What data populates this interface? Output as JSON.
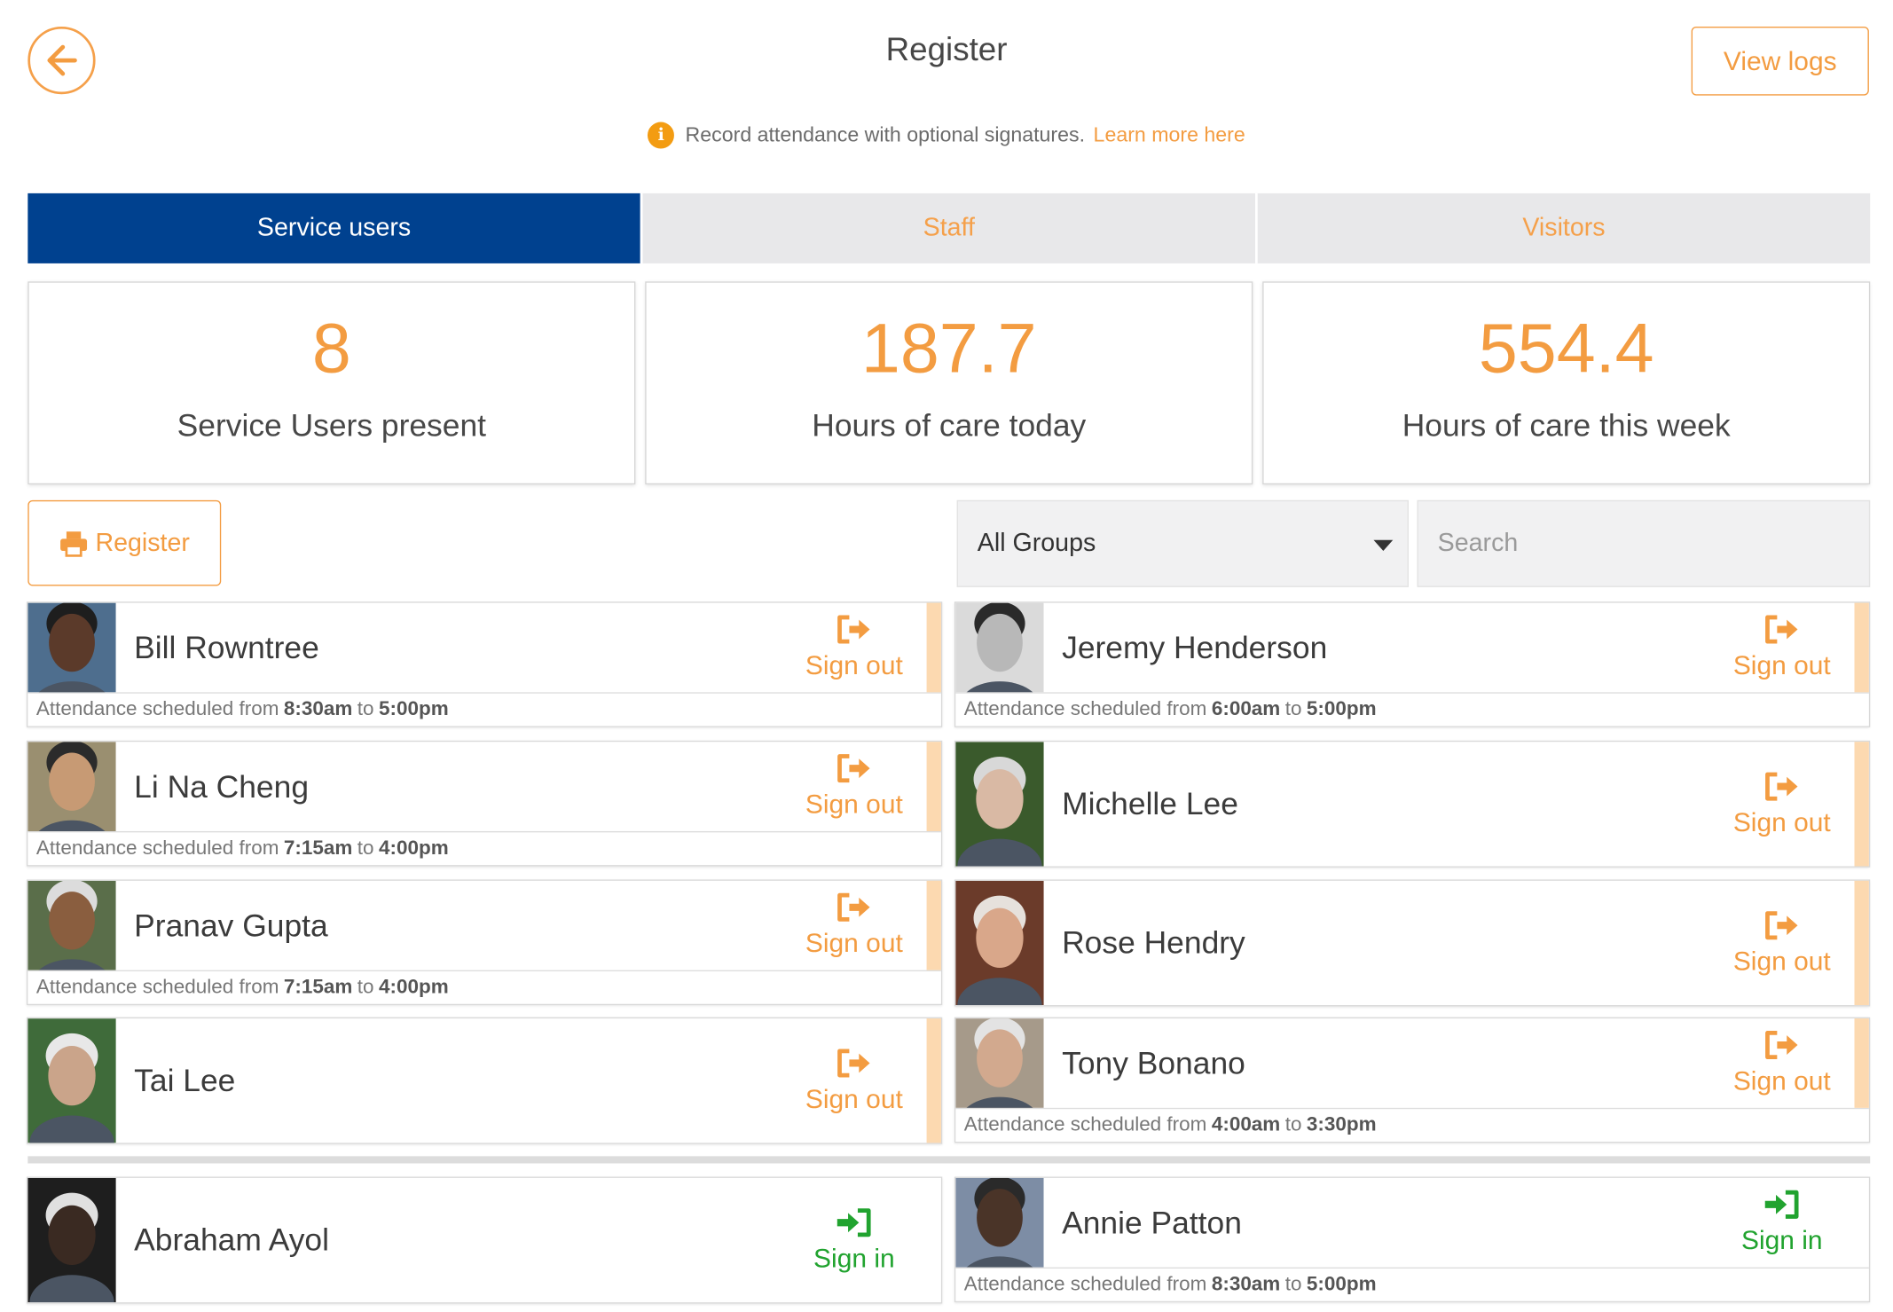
{
  "header": {
    "title": "Register",
    "view_logs_label": "View logs",
    "info_text": "Record attendance with optional signatures.",
    "learn_more": "Learn more here"
  },
  "tabs": [
    {
      "label": "Service users",
      "active": true
    },
    {
      "label": "Staff",
      "active": false
    },
    {
      "label": "Visitors",
      "active": false
    }
  ],
  "stats": [
    {
      "value": "8",
      "label": "Service Users present"
    },
    {
      "value": "187.7",
      "label": "Hours of care today"
    },
    {
      "value": "554.4",
      "label": "Hours of care this week"
    }
  ],
  "toolbar": {
    "print_label": "Register",
    "group_select": "All Groups",
    "search_placeholder": "Search"
  },
  "schedule_prefix": "Attendance scheduled from",
  "schedule_to": "to",
  "people": [
    {
      "name": "Bill Rowntree",
      "action": "Sign out",
      "from": "8:30am",
      "until": "5:00pm",
      "skin": "#5b3a2a",
      "hair": "#1e1e1e",
      "bg": "#4e6e8e"
    },
    {
      "name": "Jeremy Henderson",
      "action": "Sign out",
      "from": "6:00am",
      "until": "5:00pm",
      "skin": "#b8b8b8",
      "hair": "#2a2a2a",
      "bg": "#dadada"
    },
    {
      "name": "Li Na Cheng",
      "action": "Sign out",
      "from": "7:15am",
      "until": "4:00pm",
      "skin": "#c79a74",
      "hair": "#2b2b2b",
      "bg": "#9a8f70"
    },
    {
      "name": "Michelle Lee",
      "action": "Sign out",
      "from": "",
      "until": "",
      "skin": "#d9b9a4",
      "hair": "#d8d8d8",
      "bg": "#3a5a2c"
    },
    {
      "name": "Pranav Gupta",
      "action": "Sign out",
      "from": "7:15am",
      "until": "4:00pm",
      "skin": "#8a5e3f",
      "hair": "#dcdcdc",
      "bg": "#5a6e4a"
    },
    {
      "name": "Rose Hendry",
      "action": "Sign out",
      "from": "",
      "until": "",
      "skin": "#d9a78a",
      "hair": "#e6e1dc",
      "bg": "#6b3b2a"
    },
    {
      "name": "Tai Lee",
      "action": "Sign out",
      "from": "",
      "until": "",
      "skin": "#caa48a",
      "hair": "#e8e8e8",
      "bg": "#3f6b3a"
    },
    {
      "name": "Tony Bonano",
      "action": "Sign out",
      "from": "4:00am",
      "until": "3:30pm",
      "skin": "#d2a98e",
      "hair": "#e3e3e3",
      "bg": "#a69a8a"
    },
    {
      "name": "Abraham Ayol",
      "action": "Sign in",
      "from": "",
      "until": "",
      "skin": "#3a2a22",
      "hair": "#e0e0e0",
      "bg": "#1e1e1e"
    },
    {
      "name": "Annie Patton",
      "action": "Sign in",
      "from": "8:30am",
      "until": "5:00pm",
      "skin": "#4a3428",
      "hair": "#2a2a2a",
      "bg": "#7d8da5"
    }
  ],
  "colors": {
    "accent": "#f39c41",
    "primary": "#00418f",
    "sign_in": "#21a32f"
  }
}
